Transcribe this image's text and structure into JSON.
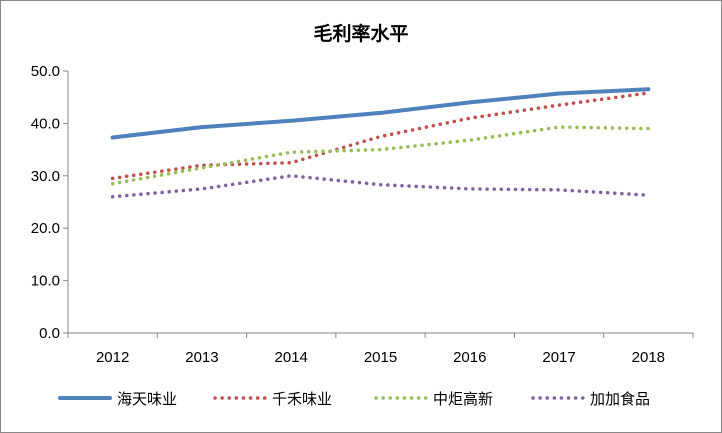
{
  "chart_data": {
    "type": "line",
    "title": "毛利率水平",
    "xlabel": "",
    "ylabel": "",
    "x": [
      "2012",
      "2013",
      "2014",
      "2015",
      "2016",
      "2017",
      "2018"
    ],
    "ylim": [
      0,
      50
    ],
    "yticks": [
      "0.0",
      "10.0",
      "20.0",
      "30.0",
      "40.0",
      "50.0"
    ],
    "grid": false,
    "legend": "bottom",
    "series": [
      {
        "name": "海天味业",
        "values": [
          37.3,
          39.3,
          40.5,
          42.0,
          44.0,
          45.7,
          46.5
        ],
        "color": "#4f81bd",
        "style": "solid"
      },
      {
        "name": "千禾味业",
        "values": [
          29.5,
          32.0,
          32.5,
          37.5,
          41.0,
          43.5,
          45.8
        ],
        "color": "#c0504d",
        "style": "dotted"
      },
      {
        "name": "中炬高新",
        "values": [
          28.5,
          31.5,
          34.5,
          35.0,
          36.8,
          39.3,
          39.0
        ],
        "color": "#9bbb59",
        "style": "dotted"
      },
      {
        "name": "加加食品",
        "values": [
          26.0,
          27.5,
          30.0,
          28.3,
          27.5,
          27.3,
          26.3
        ],
        "color": "#8064a2",
        "style": "dotted"
      }
    ]
  }
}
